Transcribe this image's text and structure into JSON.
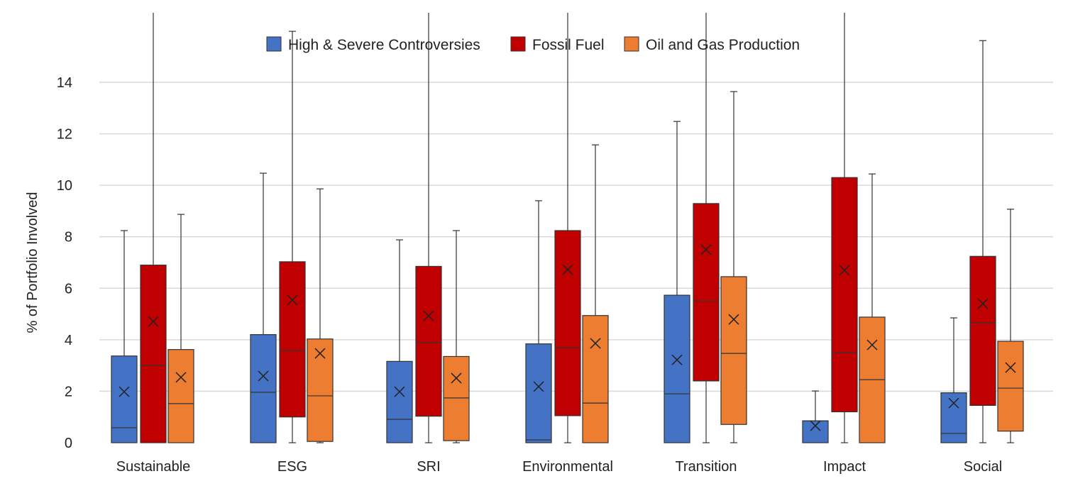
{
  "chart_data": {
    "type": "box",
    "title": "",
    "xlabel": "",
    "ylabel": "% of Portfolio Involved",
    "ylim": [
      0,
      16.7
    ],
    "yticks": [
      0,
      2,
      4,
      6,
      8,
      10,
      12,
      14
    ],
    "grid": true,
    "legend_position": "top-center",
    "categories": [
      "Sustainable",
      "ESG",
      "SRI",
      "Environmental",
      "Transition",
      "Impact",
      "Social"
    ],
    "series": [
      {
        "name": "High & Severe Controversies",
        "color": "#4472C4",
        "boxes": [
          {
            "min": 0,
            "q1": 0,
            "median": 0.58,
            "q3": 3.37,
            "max": 8.24,
            "mean": 1.98
          },
          {
            "min": 0,
            "q1": 0,
            "median": 1.96,
            "q3": 4.2,
            "max": 10.47,
            "mean": 2.59
          },
          {
            "min": 0,
            "q1": 0,
            "median": 0.91,
            "q3": 3.16,
            "max": 7.88,
            "mean": 1.98
          },
          {
            "min": 0,
            "q1": 0,
            "median": 0.11,
            "q3": 3.84,
            "max": 9.4,
            "mean": 2.18
          },
          {
            "min": 0,
            "q1": 0,
            "median": 1.9,
            "q3": 5.73,
            "max": 12.48,
            "mean": 3.22
          },
          {
            "min": 0,
            "q1": 0,
            "median": 0.85,
            "q3": 0.85,
            "max": 2.01,
            "mean": 0.66
          },
          {
            "min": 0,
            "q1": 0,
            "median": 0.36,
            "q3": 1.94,
            "max": 4.85,
            "mean": 1.54
          }
        ]
      },
      {
        "name": "Fossil Fuel",
        "color": "#C00000",
        "boxes": [
          {
            "min": 0,
            "q1": 0,
            "median": 3.0,
            "q3": 6.9,
            "max": 17,
            "mean": 4.71
          },
          {
            "min": 0,
            "q1": 1.0,
            "median": 3.58,
            "q3": 7.03,
            "max": 15.98,
            "mean": 5.54
          },
          {
            "min": 0,
            "q1": 1.03,
            "median": 3.89,
            "q3": 6.85,
            "max": 17,
            "mean": 4.93
          },
          {
            "min": 0,
            "q1": 1.05,
            "median": 3.69,
            "q3": 8.24,
            "max": 17,
            "mean": 6.72
          },
          {
            "min": 0,
            "q1": 2.4,
            "median": 5.51,
            "q3": 9.29,
            "max": 17,
            "mean": 7.5
          },
          {
            "min": 0,
            "q1": 1.2,
            "median": 3.5,
            "q3": 10.3,
            "max": 17,
            "mean": 6.7
          },
          {
            "min": 0,
            "q1": 1.45,
            "median": 4.66,
            "q3": 7.24,
            "max": 15.62,
            "mean": 5.4
          }
        ]
      },
      {
        "name": "Oil and Gas Production",
        "color": "#ED7D31",
        "boxes": [
          {
            "min": 0,
            "q1": 0,
            "median": 1.52,
            "q3": 3.62,
            "max": 8.87,
            "mean": 2.54
          },
          {
            "min": 0,
            "q1": 0.05,
            "median": 1.82,
            "q3": 4.03,
            "max": 9.86,
            "mean": 3.47
          },
          {
            "min": 0,
            "q1": 0.08,
            "median": 1.74,
            "q3": 3.35,
            "max": 8.24,
            "mean": 2.51
          },
          {
            "min": 0,
            "q1": 0,
            "median": 1.54,
            "q3": 4.94,
            "max": 11.57,
            "mean": 3.86
          },
          {
            "min": 0,
            "q1": 0.71,
            "median": 3.47,
            "q3": 6.45,
            "max": 13.64,
            "mean": 4.79
          },
          {
            "min": 0,
            "q1": 0,
            "median": 2.45,
            "q3": 4.88,
            "max": 10.44,
            "mean": 3.8
          },
          {
            "min": 0,
            "q1": 0.45,
            "median": 2.12,
            "q3": 3.94,
            "max": 9.07,
            "mean": 2.92
          }
        ]
      }
    ]
  }
}
